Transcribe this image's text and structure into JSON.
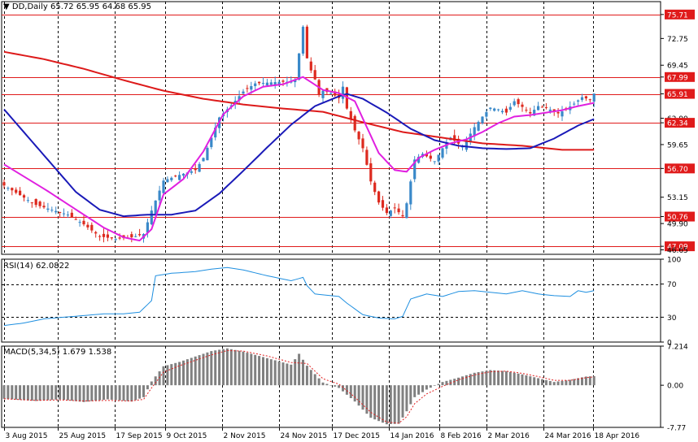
{
  "header": {
    "symbol": "DD,Daily",
    "ohlc": "65.72 65.95 64.68 65.95",
    "rsi_title": "RSI(14) 62.0822",
    "macd_title": "MACD(5,34,5) 1.679 1.538"
  },
  "colors": {
    "bull_candle": "#3a89c9",
    "bear_candle": "#dd2a1f",
    "ma_fast": "#e020e0",
    "ma_mid": "#1a1ab8",
    "ma_slow": "#dd1a1a",
    "hline": "#e01b1b",
    "rsi_line": "#1e8fe0",
    "macd_hist": "#808080",
    "macd_signal": "#e02020",
    "grid": "#000000",
    "label_bg": "#e01b1b"
  },
  "chart_data": [
    {
      "type": "candlestick",
      "title": "DD,Daily",
      "ylim": [
        46.1,
        77.3
      ],
      "y_ticks": [
        75.71,
        72.75,
        69.45,
        67.99,
        65.91,
        62.9,
        62.34,
        59.65,
        56.7,
        53.15,
        50.76,
        49.9,
        47.09,
        46.65
      ],
      "horizontal_levels": [
        75.71,
        67.99,
        65.91,
        62.34,
        56.7,
        50.76,
        47.09
      ],
      "x_tick_labels": [
        "3 Aug 2015",
        "25 Aug 2015",
        "17 Sep 2015",
        "9 Oct 2015",
        "2 Nov 2015",
        "24 Nov 2015",
        "17 Dec 2015",
        "14 Jan 2016",
        "8 Feb 2016",
        "2 Mar 2016",
        "24 Mar 2016",
        "18 Apr 2016"
      ],
      "close_path": [
        [
          0,
          54.6
        ],
        [
          8,
          52.2
        ],
        [
          16,
          51.0
        ],
        [
          20,
          49.8
        ],
        [
          24,
          48.3
        ],
        [
          28,
          48.0
        ],
        [
          32,
          48.2
        ],
        [
          35,
          48.6
        ],
        [
          37,
          51.5
        ],
        [
          40,
          55.2
        ],
        [
          44,
          55.9
        ],
        [
          48,
          56.5
        ],
        [
          50,
          58.0
        ],
        [
          52,
          60.5
        ],
        [
          54,
          63.0
        ],
        [
          57,
          64.5
        ],
        [
          60,
          66.2
        ],
        [
          63,
          67.2
        ],
        [
          66,
          67.3
        ],
        [
          69,
          67.4
        ],
        [
          71,
          67.4
        ],
        [
          73,
          67.6
        ],
        [
          75,
          74.2
        ],
        [
          76,
          70.3
        ],
        [
          77,
          68.8
        ],
        [
          78,
          67.7
        ],
        [
          79,
          65.8
        ],
        [
          80,
          66.3
        ],
        [
          82,
          66.0
        ],
        [
          84,
          65.4
        ],
        [
          85,
          66.8
        ],
        [
          86,
          64.1
        ],
        [
          88,
          61.4
        ],
        [
          90,
          59.2
        ],
        [
          92,
          55.1
        ],
        [
          94,
          52.5
        ],
        [
          96,
          51.2
        ],
        [
          98,
          51.8
        ],
        [
          100,
          50.8
        ],
        [
          101,
          52.4
        ],
        [
          103,
          57.8
        ],
        [
          105,
          58.5
        ],
        [
          108,
          57.6
        ],
        [
          110,
          59.2
        ],
        [
          112,
          60.5
        ],
        [
          115,
          59.4
        ],
        [
          118,
          61.8
        ],
        [
          120,
          63.1
        ],
        [
          122,
          64.2
        ],
        [
          124,
          64.0
        ],
        [
          126,
          63.6
        ],
        [
          128,
          65.0
        ],
        [
          130,
          64.3
        ],
        [
          132,
          63.5
        ],
        [
          134,
          64.4
        ],
        [
          136,
          64.2
        ],
        [
          139,
          63.5
        ],
        [
          141,
          64.0
        ],
        [
          143,
          64.7
        ],
        [
          145,
          65.5
        ],
        [
          147,
          65.2
        ],
        [
          148,
          65.95
        ]
      ],
      "ma_fast_path": [
        [
          0,
          57.2
        ],
        [
          10,
          54.2
        ],
        [
          20,
          51.0
        ],
        [
          25,
          49.4
        ],
        [
          30,
          48.2
        ],
        [
          34,
          47.8
        ],
        [
          37,
          49.2
        ],
        [
          40,
          53.5
        ],
        [
          45,
          55.4
        ],
        [
          50,
          58.8
        ],
        [
          55,
          63.4
        ],
        [
          60,
          65.6
        ],
        [
          65,
          66.8
        ],
        [
          70,
          67.1
        ],
        [
          75,
          68.0
        ],
        [
          80,
          66.4
        ],
        [
          84,
          66.0
        ],
        [
          88,
          65.0
        ],
        [
          91,
          61.8
        ],
        [
          94,
          58.6
        ],
        [
          98,
          56.5
        ],
        [
          101,
          56.3
        ],
        [
          104,
          58.0
        ],
        [
          108,
          59.0
        ],
        [
          112,
          59.8
        ],
        [
          116,
          60.3
        ],
        [
          120,
          61.2
        ],
        [
          124,
          62.3
        ],
        [
          128,
          63.1
        ],
        [
          132,
          63.3
        ],
        [
          136,
          63.6
        ],
        [
          140,
          63.9
        ],
        [
          144,
          64.4
        ],
        [
          148,
          64.8
        ]
      ],
      "ma_mid_path": [
        [
          0,
          64.0
        ],
        [
          6,
          60.6
        ],
        [
          12,
          57.2
        ],
        [
          18,
          53.8
        ],
        [
          24,
          51.6
        ],
        [
          30,
          50.8
        ],
        [
          36,
          51.0
        ],
        [
          42,
          51.0
        ],
        [
          48,
          51.5
        ],
        [
          54,
          53.6
        ],
        [
          60,
          56.4
        ],
        [
          66,
          59.3
        ],
        [
          72,
          62.1
        ],
        [
          78,
          64.4
        ],
        [
          84,
          65.6
        ],
        [
          86,
          65.9
        ],
        [
          90,
          65.3
        ],
        [
          96,
          63.6
        ],
        [
          102,
          61.6
        ],
        [
          108,
          60.2
        ],
        [
          114,
          59.5
        ],
        [
          120,
          59.2
        ],
        [
          126,
          59.1
        ],
        [
          132,
          59.2
        ],
        [
          138,
          60.4
        ],
        [
          144,
          62.0
        ],
        [
          148,
          62.8
        ]
      ],
      "ma_slow_path": [
        [
          0,
          71.1
        ],
        [
          10,
          70.2
        ],
        [
          20,
          69.0
        ],
        [
          30,
          67.6
        ],
        [
          40,
          66.3
        ],
        [
          50,
          65.3
        ],
        [
          60,
          64.6
        ],
        [
          70,
          64.1
        ],
        [
          80,
          63.7
        ],
        [
          90,
          62.4
        ],
        [
          100,
          61.2
        ],
        [
          110,
          60.5
        ],
        [
          120,
          59.8
        ],
        [
          130,
          59.5
        ],
        [
          140,
          59.0
        ],
        [
          148,
          59.0
        ]
      ]
    },
    {
      "type": "line",
      "title": "RSI(14) 62.0822",
      "ylim": [
        0,
        100
      ],
      "y_ticks": [
        100,
        70,
        30,
        0
      ],
      "levels": [
        70,
        30
      ],
      "rsi_path": [
        [
          0,
          20
        ],
        [
          5,
          23
        ],
        [
          10,
          28
        ],
        [
          15,
          30
        ],
        [
          20,
          32
        ],
        [
          25,
          34
        ],
        [
          30,
          34
        ],
        [
          34,
          36
        ],
        [
          37,
          50
        ],
        [
          38,
          80
        ],
        [
          42,
          83
        ],
        [
          48,
          85
        ],
        [
          52,
          88
        ],
        [
          56,
          90
        ],
        [
          60,
          87
        ],
        [
          66,
          80
        ],
        [
          72,
          74
        ],
        [
          75,
          78
        ],
        [
          76,
          68
        ],
        [
          78,
          58
        ],
        [
          84,
          55
        ],
        [
          86,
          47
        ],
        [
          90,
          33
        ],
        [
          94,
          29
        ],
        [
          98,
          28
        ],
        [
          100,
          31
        ],
        [
          102,
          52
        ],
        [
          106,
          58
        ],
        [
          110,
          55
        ],
        [
          114,
          61
        ],
        [
          118,
          62
        ],
        [
          122,
          60
        ],
        [
          126,
          58
        ],
        [
          130,
          62
        ],
        [
          134,
          58
        ],
        [
          138,
          56
        ],
        [
          142,
          55
        ],
        [
          144,
          62
        ],
        [
          146,
          60
        ],
        [
          148,
          62.08
        ]
      ]
    },
    {
      "type": "bar",
      "title": "MACD(5,34,5) 1.679 1.538",
      "ylim": [
        -7.77,
        7.214
      ],
      "y_ticks": [
        7.214,
        0.0,
        -7.77
      ],
      "macd_path": [
        [
          0,
          -2.5
        ],
        [
          8,
          -2.9
        ],
        [
          14,
          -2.6
        ],
        [
          20,
          -3.1
        ],
        [
          26,
          -2.6
        ],
        [
          32,
          -3.0
        ],
        [
          35,
          -2.2
        ],
        [
          37,
          0.7
        ],
        [
          40,
          3.5
        ],
        [
          44,
          4.3
        ],
        [
          48,
          5.3
        ],
        [
          52,
          6.3
        ],
        [
          56,
          6.8
        ],
        [
          60,
          6.2
        ],
        [
          66,
          5.0
        ],
        [
          72,
          3.8
        ],
        [
          74,
          5.8
        ],
        [
          76,
          3.6
        ],
        [
          80,
          0.5
        ],
        [
          84,
          -0.5
        ],
        [
          88,
          -3.0
        ],
        [
          92,
          -6.0
        ],
        [
          96,
          -7.2
        ],
        [
          99,
          -7.1
        ],
        [
          101,
          -4.8
        ],
        [
          103,
          -2.2
        ],
        [
          106,
          -0.8
        ],
        [
          110,
          0.6
        ],
        [
          114,
          1.4
        ],
        [
          118,
          2.3
        ],
        [
          122,
          2.8
        ],
        [
          126,
          2.6
        ],
        [
          130,
          2.0
        ],
        [
          134,
          1.3
        ],
        [
          138,
          0.6
        ],
        [
          142,
          1.0
        ],
        [
          146,
          1.6
        ],
        [
          148,
          1.68
        ]
      ],
      "signal_path": [
        [
          0,
          -2.5
        ],
        [
          8,
          -2.8
        ],
        [
          14,
          -2.7
        ],
        [
          20,
          -2.9
        ],
        [
          26,
          -2.8
        ],
        [
          32,
          -2.9
        ],
        [
          35,
          -2.6
        ],
        [
          37,
          -0.5
        ],
        [
          40,
          2.4
        ],
        [
          44,
          3.6
        ],
        [
          48,
          4.6
        ],
        [
          52,
          5.6
        ],
        [
          56,
          6.4
        ],
        [
          60,
          6.3
        ],
        [
          66,
          5.4
        ],
        [
          72,
          4.2
        ],
        [
          76,
          4.0
        ],
        [
          80,
          1.2
        ],
        [
          84,
          0.2
        ],
        [
          88,
          -2.2
        ],
        [
          92,
          -5.0
        ],
        [
          96,
          -6.8
        ],
        [
          99,
          -7.0
        ],
        [
          101,
          -5.8
        ],
        [
          103,
          -3.4
        ],
        [
          106,
          -1.6
        ],
        [
          110,
          -0.2
        ],
        [
          114,
          1.0
        ],
        [
          118,
          1.9
        ],
        [
          122,
          2.5
        ],
        [
          126,
          2.6
        ],
        [
          130,
          2.2
        ],
        [
          134,
          1.6
        ],
        [
          138,
          0.9
        ],
        [
          142,
          0.9
        ],
        [
          146,
          1.4
        ],
        [
          148,
          1.54
        ]
      ]
    }
  ]
}
